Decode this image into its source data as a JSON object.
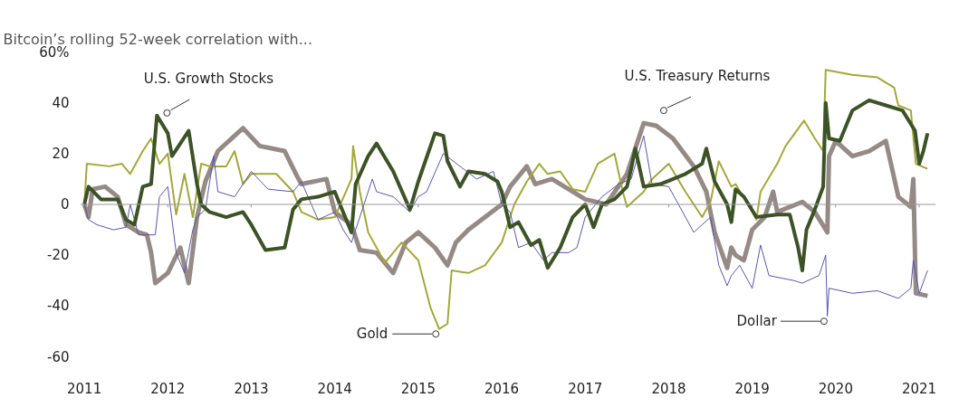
{
  "chart_data": {
    "type": "line",
    "title": "Bitcoin’s rolling 52-week correlation with...",
    "xlim": [
      2010.95,
      2021.2
    ],
    "xticks": [
      2011,
      2012,
      2013,
      2014,
      2015,
      2016,
      2017,
      2018,
      2019,
      2020,
      2021
    ],
    "ylim": [
      -60,
      60
    ],
    "yticks": [
      {
        "value": 60,
        "label": "60%"
      },
      40,
      20,
      0,
      -20,
      -40,
      -60
    ],
    "ref_lines": [
      {
        "axis": "y",
        "value": 0,
        "color": "#9a9a9a"
      }
    ],
    "marker": "none",
    "line_style": "solid",
    "series": [
      {
        "color": "#958a85",
        "x": [
          2011.0,
          2011.05,
          2011.1,
          2011.25,
          2011.4,
          2011.5,
          2011.65,
          2011.75,
          2011.8,
          2011.85,
          2012.0,
          2012.15,
          2012.25,
          2012.35,
          2012.45,
          2012.6,
          2012.8,
          2012.9,
          2013.1,
          2013.4,
          2013.55,
          2013.6,
          2013.9,
          2014.0,
          2014.2,
          2014.3,
          2014.5,
          2014.7,
          2014.85,
          2015.0,
          2015.2,
          2015.35,
          2015.45,
          2015.6,
          2015.8,
          2016.0,
          2016.1,
          2016.3,
          2016.4,
          2016.6,
          2016.85,
          2017.0,
          2017.25,
          2017.5,
          2017.7,
          2017.85,
          2018.05,
          2018.3,
          2018.45,
          2018.55,
          2018.7,
          2018.75,
          2018.8,
          2018.9,
          2019.0,
          2019.15,
          2019.25,
          2019.3,
          2019.6,
          2019.75,
          2019.9,
          2019.92,
          2020.0,
          2020.2,
          2020.4,
          2020.6,
          2020.75,
          2020.9,
          2020.93,
          2020.96,
          2021.1
        ],
        "values": [
          0,
          -5,
          6,
          7,
          3,
          -8,
          -11,
          -12,
          -19,
          -31,
          -27,
          -17,
          -31,
          -5,
          9,
          21,
          27,
          30,
          23,
          21,
          11,
          8,
          10,
          -3,
          -8,
          -18,
          -19,
          -27,
          -15,
          -11,
          -17,
          -24,
          -15,
          -10,
          -5,
          0,
          7,
          15,
          8,
          10,
          5,
          2,
          0,
          12,
          32,
          31,
          26,
          15,
          5,
          -11,
          -25,
          -17,
          -20,
          -22,
          -10,
          -5,
          5,
          -3,
          1,
          -3,
          -11,
          19,
          25,
          19,
          21,
          25,
          3,
          -1,
          10,
          -35,
          -36
        ]
      },
      {
        "color": "#a3a83c",
        "x": [
          2011.0,
          2011.03,
          2011.3,
          2011.45,
          2011.55,
          2011.7,
          2011.8,
          2011.9,
          2012.0,
          2012.1,
          2012.2,
          2012.3,
          2012.4,
          2012.5,
          2012.7,
          2012.8,
          2012.9,
          2013.0,
          2013.3,
          2013.5,
          2013.6,
          2013.8,
          2014.0,
          2014.2,
          2014.22,
          2014.3,
          2014.4,
          2014.6,
          2014.8,
          2015.0,
          2015.15,
          2015.25,
          2015.35,
          2015.4,
          2015.6,
          2015.8,
          2016.0,
          2016.15,
          2016.3,
          2016.45,
          2016.55,
          2016.7,
          2016.85,
          2017.0,
          2017.15,
          2017.35,
          2017.45,
          2017.5,
          2017.7,
          2017.8,
          2018.0,
          2018.2,
          2018.4,
          2018.5,
          2018.6,
          2018.75,
          2018.8,
          2018.95,
          2019.05,
          2019.1,
          2019.3,
          2019.4,
          2019.62,
          2019.75,
          2019.85,
          2019.88,
          2020.2,
          2020.5,
          2020.7,
          2020.75,
          2020.9,
          2020.96,
          2021.1
        ],
        "values": [
          0,
          16,
          15,
          16,
          12,
          21,
          26,
          16,
          20,
          -4,
          12,
          -5,
          16,
          15,
          15,
          21,
          8,
          12,
          12,
          5,
          -3,
          -6,
          -5,
          10,
          23,
          5,
          -11,
          -23,
          -15,
          -22,
          -41,
          -49,
          -47,
          -26,
          -27,
          -24,
          -15,
          0,
          9,
          16,
          12,
          13,
          6,
          5,
          16,
          20,
          5,
          -1,
          5,
          10,
          16,
          5,
          -5,
          1,
          17,
          7,
          8,
          0,
          -6,
          5,
          16,
          23,
          33,
          26,
          21,
          53,
          51,
          50,
          46,
          39,
          37,
          16,
          14
        ]
      },
      {
        "color": "#5a57a6",
        "x": [
          2011.0,
          2011.05,
          2011.15,
          2011.35,
          2011.5,
          2011.55,
          2011.65,
          2011.85,
          2011.9,
          2012.0,
          2012.1,
          2012.2,
          2012.3,
          2012.35,
          2012.45,
          2012.55,
          2012.6,
          2012.8,
          2013.0,
          2013.2,
          2013.5,
          2013.6,
          2013.8,
          2014.0,
          2014.1,
          2014.2,
          2014.3,
          2014.45,
          2014.5,
          2014.7,
          2014.9,
          2015.0,
          2015.1,
          2015.3,
          2015.5,
          2015.7,
          2015.9,
          2016.0,
          2016.1,
          2016.2,
          2016.35,
          2016.5,
          2016.6,
          2016.8,
          2016.9,
          2017.0,
          2017.2,
          2017.4,
          2017.55,
          2017.7,
          2017.8,
          2018.0,
          2018.3,
          2018.5,
          2018.6,
          2018.7,
          2018.75,
          2018.85,
          2019.0,
          2019.1,
          2019.2,
          2019.5,
          2019.6,
          2019.8,
          2019.88,
          2019.9,
          2019.92,
          2020.2,
          2020.5,
          2020.75,
          2020.9,
          2020.93,
          2021.0,
          2021.1
        ],
        "values": [
          0,
          -6,
          -8,
          -10,
          -9,
          0,
          -12,
          -12,
          3,
          7,
          -19,
          -27,
          -10,
          -5,
          -2,
          19,
          5,
          3,
          13,
          6,
          5,
          9,
          -6,
          -3,
          -10,
          -15,
          -5,
          10,
          5,
          3,
          -3,
          3,
          5,
          20,
          15,
          10,
          13,
          0,
          -3,
          -17,
          -15,
          -22,
          -19,
          -19,
          -17,
          -5,
          3,
          8,
          10,
          27,
          8,
          7,
          -11,
          -5,
          -24,
          -32,
          -28,
          -24,
          -33,
          -16,
          -28,
          -30,
          -31,
          -28,
          -20,
          -44,
          -33,
          -35,
          -34,
          -37,
          -33,
          -22,
          -35,
          -26
        ]
      },
      {
        "color": "#3d5227",
        "x": [
          2011.0,
          2011.05,
          2011.2,
          2011.4,
          2011.5,
          2011.6,
          2011.7,
          2011.8,
          2011.87,
          2012.0,
          2012.05,
          2012.25,
          2012.35,
          2012.4,
          2012.5,
          2012.7,
          2012.9,
          2013.0,
          2013.17,
          2013.4,
          2013.5,
          2013.6,
          2013.8,
          2014.0,
          2014.1,
          2014.2,
          2014.25,
          2014.4,
          2014.5,
          2014.7,
          2014.9,
          2015.0,
          2015.2,
          2015.3,
          2015.35,
          2015.5,
          2015.6,
          2015.8,
          2015.95,
          2016.0,
          2016.1,
          2016.2,
          2016.35,
          2016.45,
          2016.55,
          2016.7,
          2016.85,
          2017.0,
          2017.1,
          2017.2,
          2017.35,
          2017.5,
          2017.55,
          2017.6,
          2017.7,
          2017.9,
          2018.2,
          2018.4,
          2018.45,
          2018.55,
          2018.7,
          2018.75,
          2018.8,
          2018.9,
          2019.05,
          2019.3,
          2019.45,
          2019.55,
          2019.6,
          2019.65,
          2019.75,
          2019.85,
          2019.88,
          2019.92,
          2020.05,
          2020.2,
          2020.4,
          2020.6,
          2020.8,
          2020.95,
          2021.0,
          2021.05,
          2021.1
        ],
        "values": [
          0,
          7,
          2,
          2,
          -6,
          -8,
          7,
          8,
          35,
          28,
          19,
          29,
          8,
          0,
          -3,
          -5,
          -3,
          -8,
          -18,
          -17,
          -2,
          2,
          3,
          5,
          -3,
          -11,
          8,
          19,
          24,
          13,
          -2,
          9,
          28,
          27,
          17,
          7,
          13,
          12,
          9,
          5,
          -9,
          -7,
          -16,
          -14,
          -25,
          -17,
          -5,
          0,
          -9,
          0,
          2,
          7,
          14,
          22,
          7,
          8,
          12,
          16,
          22,
          9,
          0,
          -7,
          6,
          3,
          -5,
          -4,
          -4,
          -17,
          -26,
          -10,
          -2,
          7,
          40,
          26,
          25,
          37,
          41,
          39,
          37,
          29,
          16,
          21,
          28
        ]
      }
    ],
    "annotations": [
      {
        "text": "U.S. Growth Stocks",
        "x": 2011.99,
        "y": 36
      },
      {
        "text": "U.S. Treasury Returns",
        "x": 2017.94,
        "y": 37
      },
      {
        "text": "Gold",
        "x": 2015.21,
        "y": -51
      },
      {
        "text": "Dollar",
        "x": 2019.86,
        "y": -46
      }
    ]
  }
}
